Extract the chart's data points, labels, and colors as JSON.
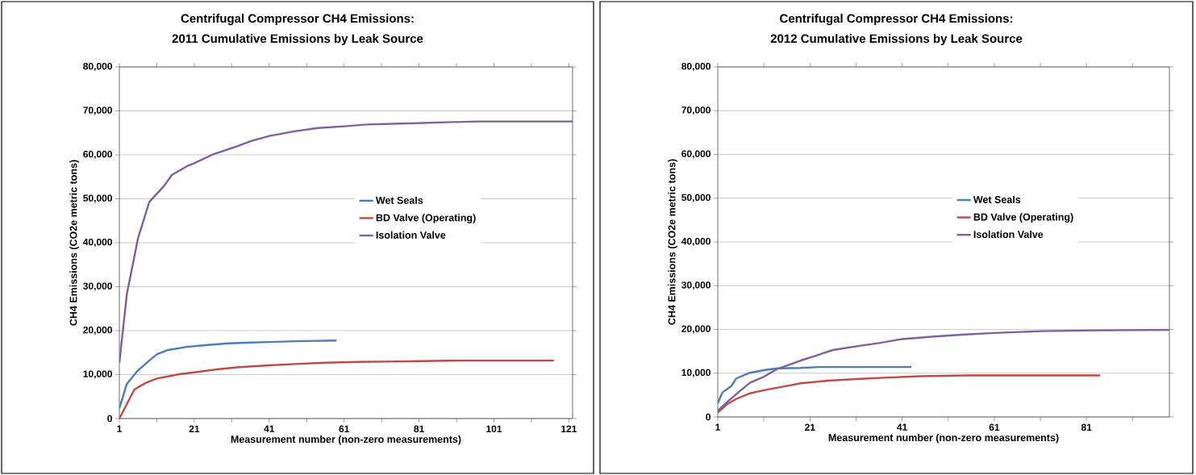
{
  "chart_data": [
    {
      "type": "line",
      "title": "Centrifugal Compressor CH4 Emissions:",
      "subtitle": "2011 Cumulative Emissions by Leak Source",
      "xlabel": "Measurement number (non-zero measurements)",
      "ylabel": "CH4 Emissions (CO2e metric tons)",
      "xlim": [
        1,
        122
      ],
      "xticks": [
        1,
        {
          "value": 11,
          "label": null
        },
        21,
        {
          "value": 31,
          "label": null
        },
        41,
        {
          "value": 51,
          "label": null
        },
        61,
        {
          "value": 71,
          "label": null
        },
        81,
        {
          "value": 91,
          "label": null
        },
        101,
        {
          "value": 111,
          "label": null
        },
        121
      ],
      "ylim": [
        0,
        80000
      ],
      "yticks": [
        0,
        {
          "value": 10000,
          "label": "10,000"
        },
        {
          "value": 20000,
          "label": "20,000"
        },
        {
          "value": 30000,
          "label": "30,000"
        },
        {
          "value": 40000,
          "label": "40,000"
        },
        {
          "value": 50000,
          "label": "50,000"
        },
        {
          "value": 60000,
          "label": "60,000"
        },
        {
          "value": 70000,
          "label": "70,000"
        },
        {
          "value": 80000,
          "label": "80,000"
        }
      ],
      "grid": "y",
      "legend": "right",
      "marker": "none",
      "line_style": "solid",
      "series": [
        {
          "name": "Wet Seals",
          "color": "#4a7ebb",
          "x": [
            1,
            3,
            6,
            9,
            11,
            14,
            19,
            24,
            30,
            36,
            41,
            48,
            59
          ],
          "values": [
            2300,
            7900,
            11000,
            13200,
            14600,
            15600,
            16300,
            16700,
            17100,
            17300,
            17400,
            17600,
            17750
          ]
        },
        {
          "name": "BD Valve (Operating)",
          "color": "#be4b48",
          "x": [
            1,
            5,
            8,
            11,
            17,
            21,
            27,
            33,
            41,
            48,
            56,
            65,
            76,
            92,
            117
          ],
          "values": [
            0,
            6600,
            8100,
            9100,
            10100,
            10500,
            11200,
            11700,
            12100,
            12400,
            12700,
            12900,
            13000,
            13200,
            13200
          ]
        },
        {
          "name": "Isolation Valve",
          "color": "#7d60a0",
          "x": [
            1,
            3,
            6,
            9,
            13,
            15,
            19,
            21,
            26,
            32,
            36,
            41,
            48,
            54,
            61,
            67,
            76,
            88,
            97,
            122
          ],
          "values": [
            12700,
            28300,
            41100,
            49300,
            53000,
            55400,
            57400,
            58100,
            60100,
            61800,
            63100,
            64300,
            65400,
            66100,
            66500,
            66900,
            67100,
            67400,
            67600,
            67600
          ]
        }
      ]
    },
    {
      "type": "line",
      "title": "Centrifugal Compressor CH4 Emissions:",
      "subtitle": "2012 Cumulative Emissions by Leak Source",
      "xlabel": "Measurement number (non-zero measurements)",
      "ylabel": "CH4 Emissions (CO2e metric tons)",
      "xlim": [
        1,
        99
      ],
      "xticks": [
        1,
        {
          "value": 11,
          "label": null
        },
        21,
        {
          "value": 31,
          "label": null
        },
        41,
        {
          "value": 51,
          "label": null
        },
        61,
        {
          "value": 71,
          "label": null
        },
        81,
        {
          "value": 91,
          "label": null
        }
      ],
      "ylim": [
        0,
        80000
      ],
      "yticks": [
        0,
        {
          "value": 10000,
          "label": "10,000"
        },
        {
          "value": 20000,
          "label": "20,000"
        },
        {
          "value": 30000,
          "label": "30,000"
        },
        {
          "value": 40000,
          "label": "40,000"
        },
        {
          "value": 50000,
          "label": "50,000"
        },
        {
          "value": 60000,
          "label": "60,000"
        },
        {
          "value": 70000,
          "label": "70,000"
        },
        {
          "value": 80000,
          "label": "80,000"
        }
      ],
      "grid": "y",
      "legend": "right",
      "marker": "none",
      "line_style": "solid",
      "series": [
        {
          "name": "Wet Seals",
          "color": "#4a7ebb",
          "x": [
            1,
            2,
            4,
            5,
            8,
            11,
            14,
            19,
            23,
            32,
            43
          ],
          "values": [
            3100,
            5600,
            7100,
            8800,
            10100,
            10700,
            11100,
            11200,
            11400,
            11400,
            11400
          ]
        },
        {
          "name": "BD Valve (Operating)",
          "color": "#be4b48",
          "x": [
            1,
            3,
            5,
            8,
            11,
            15,
            19,
            25,
            32,
            38,
            45,
            55,
            84
          ],
          "values": [
            1000,
            2900,
            4100,
            5400,
            6100,
            6900,
            7700,
            8300,
            8700,
            9000,
            9300,
            9500,
            9500
          ]
        },
        {
          "name": "Isolation Valve",
          "color": "#7d60a0",
          "x": [
            1,
            3,
            6,
            8,
            11,
            14,
            19,
            22,
            26,
            32,
            36,
            41,
            48,
            54,
            61,
            71,
            84,
            99
          ],
          "values": [
            1400,
            3400,
            6100,
            7800,
            9200,
            11000,
            12900,
            13900,
            15300,
            16300,
            16900,
            17800,
            18400,
            18800,
            19200,
            19600,
            19800,
            19900
          ]
        }
      ]
    }
  ]
}
